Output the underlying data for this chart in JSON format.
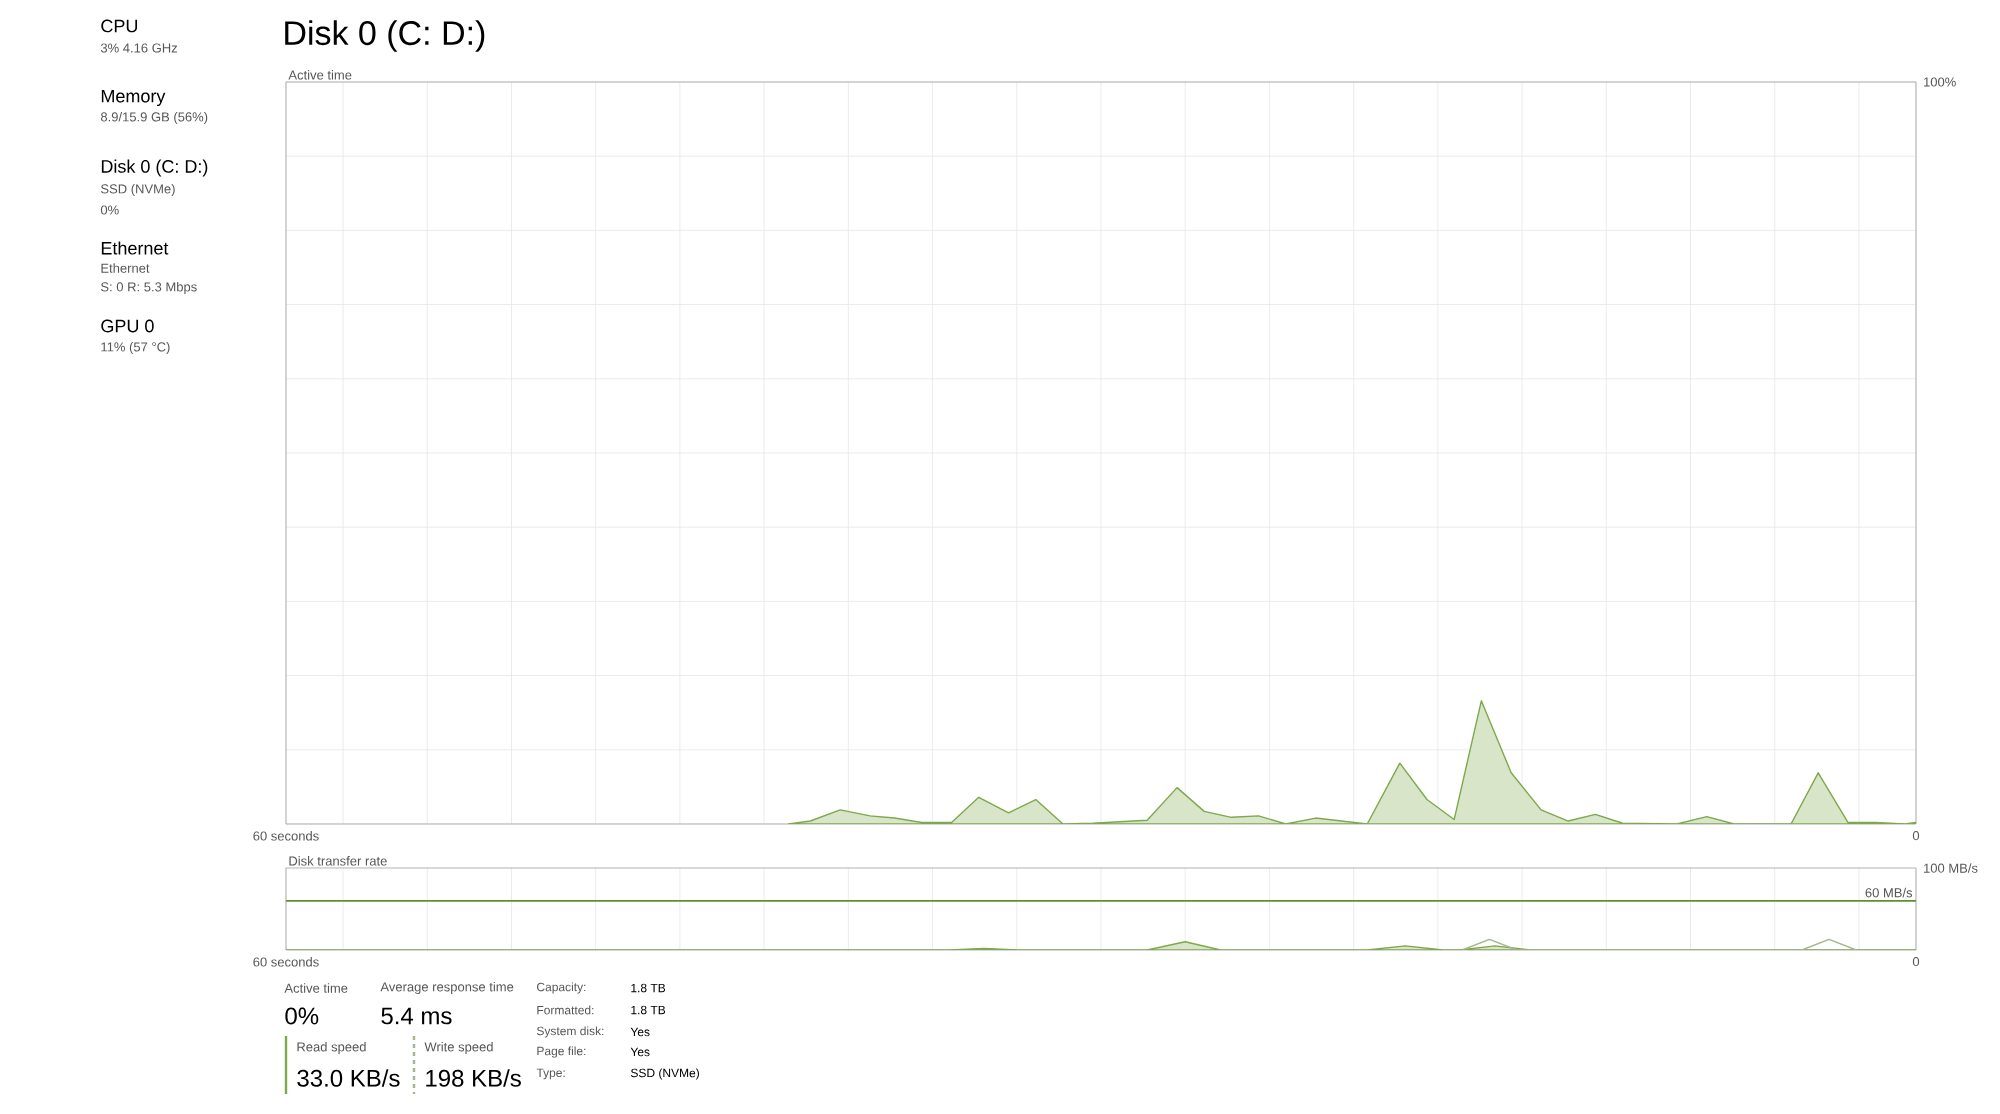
{
  "chart_data": [
    {
      "type": "other",
      "annotations": [
        "CPU",
        "3% 4.16 GHz",
        "Memory",
        "8.9/15.9 GB (56%)",
        "Disk 0 (C: D:)",
        "SSD (NVMe)",
        "0%",
        "Ethernet",
        "Ethernet",
        "S: 0 R: 5.3 Mbps",
        "GPU 0",
        "11% (57 °C)"
      ]
    },
    {
      "type": "area",
      "title": "Disk 0 (C: D:)",
      "ylabel": "Active time",
      "color": "#7ea84c",
      "x": [
        41.5,
        40.7,
        39.6,
        38.5,
        37.6,
        36.6,
        35.5,
        34.5,
        33.4,
        32.4,
        31.4,
        30.3,
        28.3,
        27.2,
        26.2,
        25.2,
        24.2,
        23.2,
        22.1,
        20.2,
        19.0,
        18.0,
        17.0,
        16.0,
        14.9,
        13.8,
        12.8,
        11.8,
        10.8,
        8.8,
        7.7,
        6.7,
        4.6,
        3.6,
        2.5,
        1.5,
        0.4,
        0
      ],
      "values": [
        0,
        0.4,
        1.9,
        1.1,
        0.8,
        0.2,
        0.2,
        3.6,
        1.5,
        3.3,
        0,
        0.1,
        0.5,
        4.9,
        1.7,
        0.9,
        1.1,
        0,
        0.8,
        0,
        8.2,
        3.3,
        0.6,
        16.6,
        6.9,
        1.9,
        0.4,
        1.3,
        0.1,
        0,
        1.0,
        0,
        0,
        6.9,
        0.2,
        0.2,
        0,
        0.2
      ],
      "xlim": [
        60,
        0
      ],
      "ylim": [
        0,
        100
      ],
      "xticks": [
        {
          "value": 60,
          "label": "60 seconds"
        },
        {
          "value": 57.9,
          "label": null
        },
        {
          "value": 54.8,
          "label": null
        },
        {
          "value": 51.7,
          "label": null
        },
        {
          "value": 48.6,
          "label": null
        },
        {
          "value": 45.5,
          "label": null
        },
        {
          "value": 42.4,
          "label": null
        },
        {
          "value": 39.3,
          "label": null
        },
        {
          "value": 36.2,
          "label": null
        },
        {
          "value": 33.1,
          "label": null
        },
        {
          "value": 30.0,
          "label": null
        },
        {
          "value": 26.9,
          "label": null
        },
        {
          "value": 23.8,
          "label": null
        },
        {
          "value": 20.7,
          "label": null
        },
        {
          "value": 17.6,
          "label": null
        },
        {
          "value": 14.5,
          "label": null
        },
        {
          "value": 11.4,
          "label": null
        },
        {
          "value": 8.3,
          "label": null
        },
        {
          "value": 5.2,
          "label": null
        },
        {
          "value": 2.1,
          "label": null
        },
        {
          "value": 0,
          "label": "0"
        }
      ],
      "yticks": [
        {
          "value": 0,
          "label": null
        },
        {
          "value": 10,
          "label": null
        },
        {
          "value": 20,
          "label": null
        },
        {
          "value": 30,
          "label": null
        },
        {
          "value": 40,
          "label": null
        },
        {
          "value": 50,
          "label": null
        },
        {
          "value": 60,
          "label": null
        },
        {
          "value": 70,
          "label": null
        },
        {
          "value": 80,
          "label": null
        },
        {
          "value": 90,
          "label": null
        },
        {
          "value": 100,
          "label": "100%"
        }
      ],
      "grid": true
    },
    {
      "type": "area",
      "ylabel": "Disk transfer rate",
      "series": [
        {
          "type": "area",
          "color": "#7ea84c",
          "x": [
            60,
            35.6,
            34.3,
            33.0,
            28.3,
            26.9,
            25.6,
            20.2,
            18.8,
            17.4,
            16.8,
            15.5,
            14.2,
            0
          ],
          "values": [
            0,
            0,
            2,
            0,
            0,
            10,
            0,
            0,
            5,
            0,
            0,
            5,
            0,
            0
          ]
        },
        {
          "type": "line",
          "color": "#a3b58c",
          "x": [
            16.7,
            15.7,
            14.7,
            4.2,
            3.2,
            2.2
          ],
          "values": [
            0,
            13,
            0,
            0,
            13,
            0
          ]
        }
      ],
      "xlim": [
        60,
        0
      ],
      "ylim": [
        0,
        100
      ],
      "xticks": [
        {
          "value": 60,
          "label": "60 seconds"
        },
        {
          "value": 57.9,
          "label": null
        },
        {
          "value": 54.8,
          "label": null
        },
        {
          "value": 51.7,
          "label": null
        },
        {
          "value": 48.6,
          "label": null
        },
        {
          "value": 45.5,
          "label": null
        },
        {
          "value": 42.4,
          "label": null
        },
        {
          "value": 39.3,
          "label": null
        },
        {
          "value": 36.2,
          "label": null
        },
        {
          "value": 33.1,
          "label": null
        },
        {
          "value": 30.0,
          "label": null
        },
        {
          "value": 26.9,
          "label": null
        },
        {
          "value": 23.8,
          "label": null
        },
        {
          "value": 20.7,
          "label": null
        },
        {
          "value": 17.6,
          "label": null
        },
        {
          "value": 14.5,
          "label": null
        },
        {
          "value": 11.4,
          "label": null
        },
        {
          "value": 8.3,
          "label": null
        },
        {
          "value": 5.2,
          "label": null
        },
        {
          "value": 2.1,
          "label": null
        },
        {
          "value": 0,
          "label": "0"
        }
      ],
      "yticks": [
        {
          "value": 0,
          "label": null
        },
        {
          "value": 100,
          "label": "100 MB/s"
        }
      ],
      "ref_lines": [
        {
          "axis": "y",
          "value": 60,
          "label": "60 MB/s",
          "color": "#5f8f2e"
        }
      ],
      "grid": "x"
    },
    {
      "type": "other",
      "annotations": [
        "Active time",
        "0%",
        "Average response time",
        "5.4 ms",
        "Read speed",
        "33.0 KB/s",
        "Write speed",
        "198 KB/s",
        "Capacity:",
        "1.8 TB",
        "Formatted:",
        "1.8 TB",
        "System disk:",
        "Yes",
        "Page file:",
        "Yes",
        "Type:",
        "SSD (NVMe)"
      ]
    }
  ]
}
